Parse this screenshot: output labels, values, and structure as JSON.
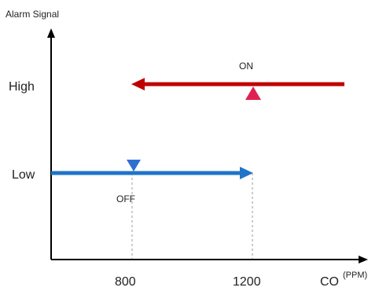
{
  "title": "Alarm Signal",
  "y_levels": {
    "high": "High",
    "low": "Low"
  },
  "x_ticks": {
    "off_point": "800",
    "on_point": "1200"
  },
  "x_axis": {
    "label": "CO",
    "unit": "(PPM)"
  },
  "annotations": {
    "on": "ON",
    "off": "OFF"
  },
  "colors": {
    "axis": "#000000",
    "high_line": "#c00000",
    "low_line": "#1f74c8",
    "transition_top": "#e02050",
    "transition_bottom": "#2f6fd0",
    "guide": "#9aa08a"
  }
}
